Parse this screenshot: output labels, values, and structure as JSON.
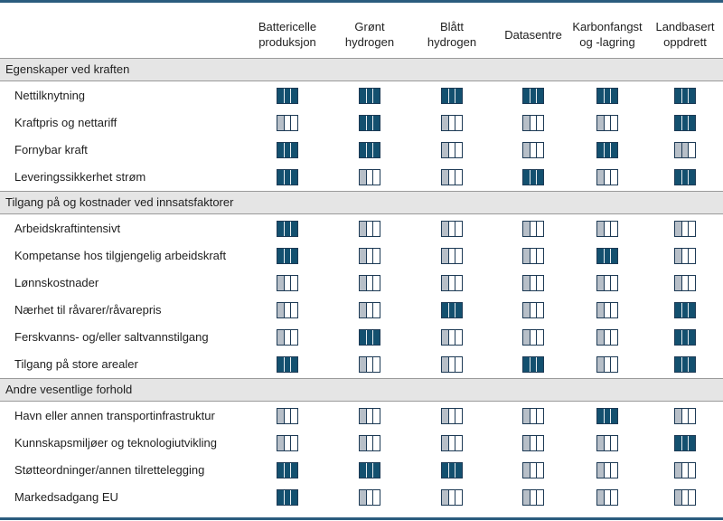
{
  "columns": [
    {
      "label": "Battericelle\nproduksjon"
    },
    {
      "label": "Grønt\nhydrogen"
    },
    {
      "label": "Blått\nhydrogen"
    },
    {
      "label": "Datasentre"
    },
    {
      "label": "Karbonfangst\nog -lagring"
    },
    {
      "label": "Landbasert\noppdrett"
    }
  ],
  "sections": [
    {
      "title": "Egenskaper ved kraften",
      "rows": [
        {
          "label": "Nettilknytning",
          "levels": [
            3,
            3,
            3,
            3,
            3,
            3
          ]
        },
        {
          "label": "Kraftpris og nettariff",
          "levels": [
            1,
            3,
            1,
            1,
            1,
            3
          ]
        },
        {
          "label": "Fornybar kraft",
          "levels": [
            3,
            3,
            1,
            1,
            3,
            2
          ]
        },
        {
          "label": "Leveringssikkerhet strøm",
          "levels": [
            3,
            1,
            1,
            3,
            1,
            3
          ]
        }
      ]
    },
    {
      "title": "Tilgang på og kostnader ved innsatsfaktorer",
      "rows": [
        {
          "label": "Arbeidskraftintensivt",
          "levels": [
            3,
            1,
            1,
            1,
            1,
            1
          ]
        },
        {
          "label": "Kompetanse hos tilgjengelig arbeidskraft",
          "levels": [
            3,
            1,
            1,
            1,
            3,
            1
          ]
        },
        {
          "label": "Lønnskostnader",
          "levels": [
            1,
            1,
            1,
            1,
            1,
            1
          ]
        },
        {
          "label": "Nærhet til råvarer/råvarepris",
          "levels": [
            1,
            1,
            3,
            1,
            1,
            3
          ]
        },
        {
          "label": "Ferskvanns- og/eller saltvannstilgang",
          "levels": [
            1,
            3,
            1,
            1,
            1,
            3
          ]
        },
        {
          "label": "Tilgang på store arealer",
          "levels": [
            3,
            1,
            1,
            3,
            1,
            3
          ]
        }
      ]
    },
    {
      "title": "Andre vesentlige forhold",
      "rows": [
        {
          "label": "Havn eller annen transportinfrastruktur",
          "levels": [
            1,
            1,
            1,
            1,
            3,
            1
          ]
        },
        {
          "label": "Kunnskapsmiljøer og teknologiutvikling",
          "levels": [
            1,
            1,
            1,
            1,
            1,
            3
          ]
        },
        {
          "label": "Støtteordninger/annen tilrettelegging",
          "levels": [
            3,
            3,
            3,
            1,
            1,
            1
          ]
        },
        {
          "label": "Markedsadgang EU",
          "levels": [
            3,
            1,
            1,
            1,
            1,
            1
          ]
        }
      ]
    }
  ],
  "colors": {
    "dark": "#13506f",
    "light": "#b7bfc8",
    "rule": "#2b5c7e"
  }
}
